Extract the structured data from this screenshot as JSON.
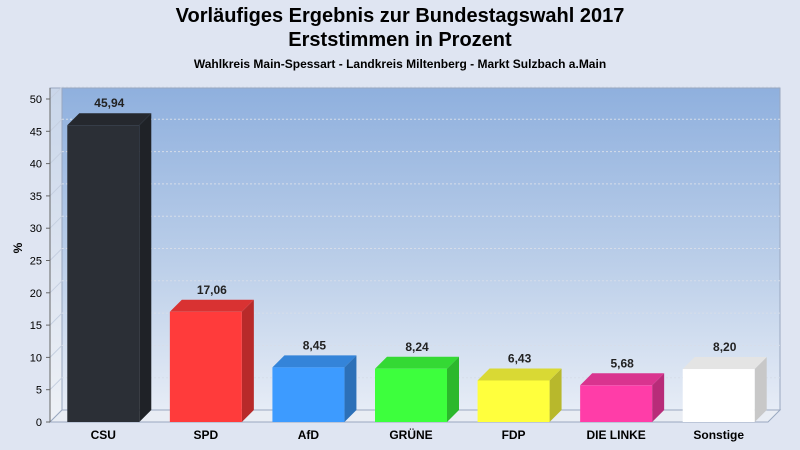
{
  "header": {
    "title": "Vorläufiges Ergebnis zur Bundestagswahl 2017",
    "subtitle": "Erststimmen in Prozent",
    "region": "Wahlkreis Main-Spessart - Landkreis Miltenberg - Markt Sulzbach a.Main"
  },
  "chart_data": {
    "type": "bar",
    "title": "Vorläufiges Ergebnis zur Bundestagswahl 2017",
    "subtitle": "Erststimmen in Prozent",
    "ylabel": "%",
    "xlabel": "",
    "ylim": [
      0,
      50
    ],
    "yticks": [
      0,
      5,
      10,
      15,
      20,
      25,
      30,
      35,
      40,
      45,
      50
    ],
    "grid": true,
    "categories": [
      "CSU",
      "SPD",
      "AfD",
      "GRÜNE",
      "FDP",
      "DIE LINKE",
      "Sonstige"
    ],
    "values": [
      45.94,
      17.06,
      8.45,
      8.24,
      6.43,
      5.68,
      8.2
    ],
    "value_labels": [
      "45,94",
      "17,06",
      "8,45",
      "8,24",
      "6,43",
      "5,68",
      "8,20"
    ],
    "colors": [
      "#2b2f36",
      "#ff3b3b",
      "#3d9bff",
      "#3dff3d",
      "#ffff3d",
      "#ff3da8",
      "#ffffff"
    ]
  }
}
